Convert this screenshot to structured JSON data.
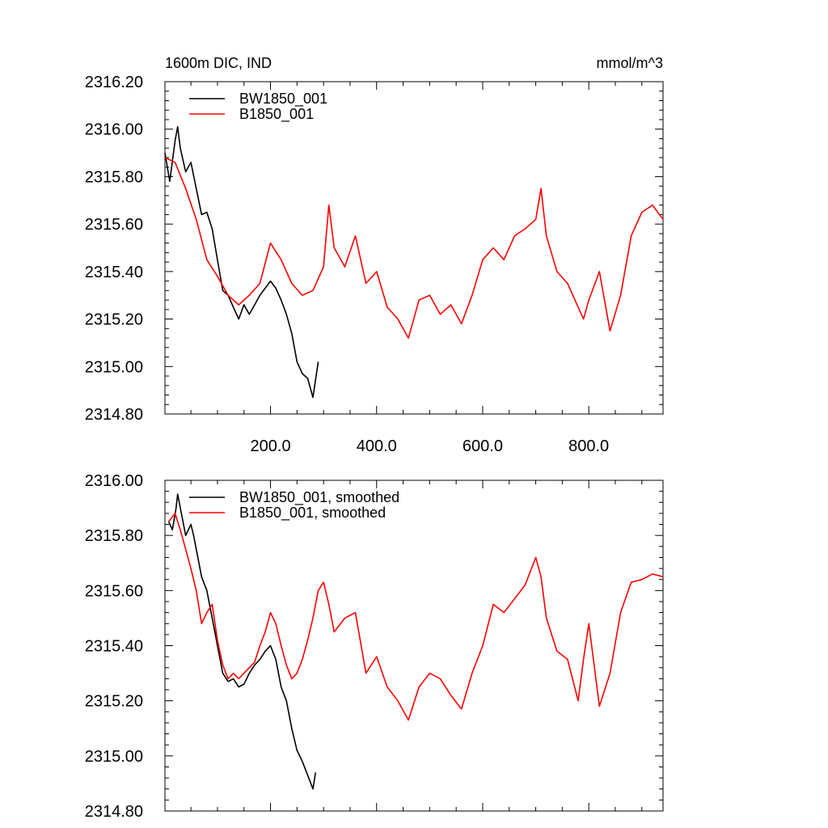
{
  "chart_data": [
    {
      "type": "line",
      "title": "1600m DIC, IND",
      "units": "mmol/m^3",
      "xlabel": "",
      "ylabel": "",
      "xlim": [
        1,
        940
      ],
      "ylim": [
        2314.8,
        2316.2
      ],
      "xticks": [
        200,
        400,
        600,
        800
      ],
      "xtick_labels": [
        "200.0",
        "400.0",
        "600.0",
        "800.0"
      ],
      "yticks": [
        2314.8,
        2315.0,
        2315.2,
        2315.4,
        2315.6,
        2315.8,
        2316.0,
        2316.2
      ],
      "ytick_labels": [
        "2314.80",
        "2315.00",
        "2315.20",
        "2315.40",
        "2315.60",
        "2315.80",
        "2316.00",
        "2316.20"
      ],
      "grid": false,
      "legend_position": "top-left",
      "series": [
        {
          "name": "BW1850_001",
          "color": "#000000",
          "x": [
            1,
            10,
            20,
            25,
            30,
            40,
            50,
            60,
            70,
            80,
            90,
            100,
            110,
            120,
            130,
            140,
            150,
            160,
            170,
            180,
            190,
            200,
            210,
            220,
            230,
            240,
            250,
            260,
            270,
            280,
            290
          ],
          "y": [
            2315.9,
            2315.78,
            2315.95,
            2316.01,
            2315.92,
            2315.82,
            2315.86,
            2315.75,
            2315.64,
            2315.65,
            2315.58,
            2315.45,
            2315.32,
            2315.3,
            2315.25,
            2315.2,
            2315.26,
            2315.22,
            2315.26,
            2315.3,
            2315.33,
            2315.36,
            2315.33,
            2315.28,
            2315.22,
            2315.14,
            2315.02,
            2314.97,
            2314.95,
            2314.87,
            2315.02
          ]
        },
        {
          "name": "B1850_001",
          "color": "#ff0000",
          "x": [
            1,
            20,
            40,
            60,
            80,
            100,
            120,
            140,
            160,
            180,
            200,
            220,
            240,
            260,
            280,
            300,
            310,
            320,
            340,
            360,
            380,
            400,
            420,
            440,
            460,
            480,
            500,
            520,
            540,
            560,
            580,
            600,
            620,
            640,
            660,
            680,
            700,
            710,
            720,
            740,
            760,
            780,
            790,
            800,
            820,
            840,
            860,
            880,
            900,
            920,
            940
          ],
          "y": [
            2315.88,
            2315.86,
            2315.75,
            2315.62,
            2315.45,
            2315.38,
            2315.3,
            2315.26,
            2315.3,
            2315.35,
            2315.52,
            2315.45,
            2315.35,
            2315.3,
            2315.32,
            2315.42,
            2315.68,
            2315.5,
            2315.42,
            2315.55,
            2315.35,
            2315.4,
            2315.25,
            2315.2,
            2315.12,
            2315.28,
            2315.3,
            2315.22,
            2315.26,
            2315.18,
            2315.3,
            2315.45,
            2315.5,
            2315.45,
            2315.55,
            2315.58,
            2315.62,
            2315.75,
            2315.55,
            2315.4,
            2315.35,
            2315.25,
            2315.2,
            2315.28,
            2315.4,
            2315.15,
            2315.3,
            2315.55,
            2315.65,
            2315.68,
            2315.62
          ]
        }
      ]
    },
    {
      "type": "line",
      "title": "",
      "xlabel": "",
      "ylabel": "",
      "xlim": [
        1,
        940
      ],
      "ylim": [
        2314.8,
        2316.0
      ],
      "xticks": [
        200,
        400,
        600,
        800
      ],
      "yticks": [
        2314.8,
        2315.0,
        2315.2,
        2315.4,
        2315.6,
        2315.8,
        2316.0
      ],
      "ytick_labels": [
        "2314.80",
        "2315.00",
        "2315.20",
        "2315.40",
        "2315.60",
        "2315.80",
        "2316.00"
      ],
      "grid": false,
      "legend_position": "top-left",
      "series": [
        {
          "name": "BW1850_001, smoothed",
          "color": "#000000",
          "x": [
            8,
            15,
            22,
            25,
            30,
            35,
            40,
            45,
            50,
            55,
            60,
            70,
            80,
            90,
            100,
            110,
            120,
            130,
            140,
            150,
            160,
            170,
            180,
            190,
            200,
            210,
            220,
            230,
            240,
            250,
            260,
            270,
            280,
            285
          ],
          "y": [
            2315.85,
            2315.82,
            2315.9,
            2315.95,
            2315.9,
            2315.85,
            2315.8,
            2315.82,
            2315.84,
            2315.8,
            2315.75,
            2315.65,
            2315.6,
            2315.5,
            2315.4,
            2315.3,
            2315.27,
            2315.28,
            2315.25,
            2315.26,
            2315.3,
            2315.33,
            2315.35,
            2315.38,
            2315.4,
            2315.35,
            2315.25,
            2315.2,
            2315.1,
            2315.02,
            2314.98,
            2314.93,
            2314.88,
            2314.94
          ]
        },
        {
          "name": "B1850_001, smoothed",
          "color": "#ff0000",
          "x": [
            8,
            20,
            30,
            40,
            50,
            60,
            70,
            80,
            90,
            100,
            110,
            120,
            130,
            140,
            150,
            160,
            170,
            180,
            190,
            200,
            210,
            220,
            230,
            240,
            250,
            260,
            270,
            280,
            290,
            300,
            310,
            320,
            340,
            360,
            380,
            400,
            420,
            440,
            460,
            480,
            500,
            520,
            540,
            560,
            580,
            600,
            620,
            640,
            660,
            680,
            700,
            710,
            720,
            740,
            760,
            780,
            790,
            800,
            820,
            840,
            860,
            880,
            900,
            920,
            940
          ],
          "y": [
            2315.85,
            2315.88,
            2315.82,
            2315.75,
            2315.68,
            2315.6,
            2315.48,
            2315.52,
            2315.55,
            2315.42,
            2315.33,
            2315.28,
            2315.3,
            2315.28,
            2315.3,
            2315.32,
            2315.34,
            2315.4,
            2315.45,
            2315.52,
            2315.48,
            2315.4,
            2315.33,
            2315.28,
            2315.3,
            2315.35,
            2315.42,
            2315.5,
            2315.6,
            2315.63,
            2315.55,
            2315.45,
            2315.5,
            2315.52,
            2315.3,
            2315.36,
            2315.25,
            2315.2,
            2315.13,
            2315.25,
            2315.3,
            2315.28,
            2315.22,
            2315.17,
            2315.3,
            2315.4,
            2315.55,
            2315.52,
            2315.57,
            2315.62,
            2315.72,
            2315.65,
            2315.5,
            2315.38,
            2315.35,
            2315.2,
            2315.35,
            2315.48,
            2315.18,
            2315.3,
            2315.52,
            2315.63,
            2315.64,
            2315.66,
            2315.65
          ]
        }
      ]
    }
  ]
}
